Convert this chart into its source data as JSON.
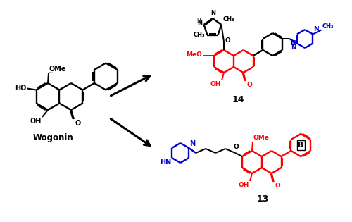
{
  "bg": "#ffffff",
  "black": "#000000",
  "red": "#ff0000",
  "blue": "#0000cc",
  "lw": 1.7,
  "wogonin_label": "Wogonin",
  "label13": "13",
  "label14": "14"
}
